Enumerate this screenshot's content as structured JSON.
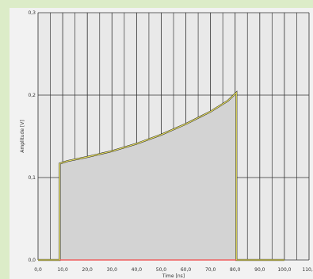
{
  "chart_data": {
    "type": "area",
    "xlabel": "Time [ns]",
    "ylabel": "Amplitude [V]",
    "xlim": [
      0,
      110
    ],
    "ylim": [
      0,
      0.3
    ],
    "x_ticks": [
      "0,0",
      "10,0",
      "20,0",
      "30,0",
      "40,0",
      "50,0",
      "60,0",
      "70,0",
      "80,0",
      "90,0",
      "100,0",
      "110,0"
    ],
    "y_ticks": [
      "0,0",
      "0,1",
      "0,2",
      "0,3"
    ],
    "grid": true,
    "series": [
      {
        "x": [
          0,
          8.8,
          8.8,
          12,
          20,
          30,
          40,
          50,
          60,
          70,
          77,
          80.5,
          80.5,
          90,
          100
        ],
        "y": [
          0,
          0,
          0.117,
          0.12,
          0.125,
          0.132,
          0.141,
          0.152,
          0.165,
          0.18,
          0.193,
          0.203,
          0,
          0,
          0
        ],
        "color": "#e8e060"
      }
    ],
    "baseline_color": "#f06060",
    "fill_color": "#d3d3d3"
  }
}
